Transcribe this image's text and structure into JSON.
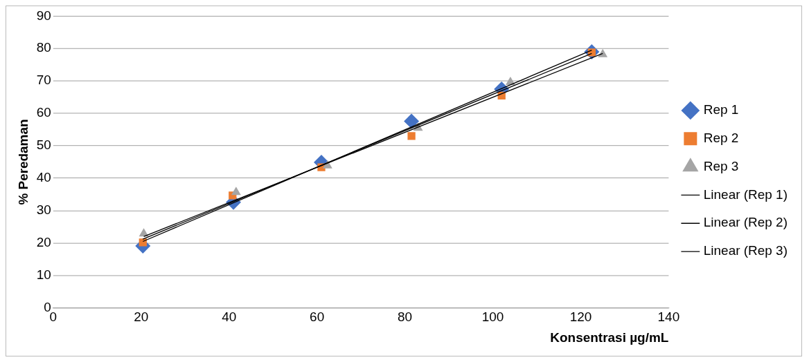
{
  "chart_data": {
    "type": "scatter",
    "xlabel": "Konsentrasi µg/mL",
    "ylabel": "% Peredaman",
    "xlim": [
      0,
      140
    ],
    "xticks": [
      0,
      20,
      40,
      60,
      80,
      100,
      120,
      140
    ],
    "ylim": [
      0,
      90
    ],
    "yticks": [
      0,
      10,
      20,
      30,
      40,
      50,
      60,
      70,
      80,
      90
    ],
    "grid": "y",
    "legend": "right",
    "series": [
      {
        "name": "Rep 1",
        "marker": "diamond",
        "color": "#4472c4",
        "x": [
          20.4,
          41,
          61,
          81.5,
          102,
          122.5
        ],
        "values": [
          19.1,
          32.6,
          44.9,
          57.6,
          67.5,
          79
        ]
      },
      {
        "name": "Rep 2",
        "marker": "square",
        "color": "#ed7d31",
        "x": [
          20.4,
          40.8,
          61,
          81.5,
          102,
          122.5
        ],
        "values": [
          20.2,
          34.7,
          43.4,
          53,
          65.5,
          78.8
        ]
      },
      {
        "name": "Rep 3",
        "marker": "triangle",
        "color": "#a5a5a5",
        "x": [
          20.6,
          41.6,
          62.4,
          83,
          104,
          125
        ],
        "values": [
          22.9,
          35.7,
          43.9,
          55.5,
          69.6,
          78.2
        ]
      },
      {
        "name": "Linear (Rep 1)",
        "type": "line",
        "marker": "none",
        "line_style": "solid",
        "color": "#000000",
        "x": [
          20.4,
          122.5
        ],
        "values": [
          20.5,
          79.5
        ]
      },
      {
        "name": "Linear (Rep 2)",
        "type": "line",
        "marker": "none",
        "line_style": "solid",
        "color": "#000000",
        "x": [
          20.4,
          122.5
        ],
        "values": [
          21.2,
          78.5
        ]
      },
      {
        "name": "Linear (Rep 3)",
        "type": "line",
        "marker": "none",
        "line_style": "solid",
        "color": "#000000",
        "x": [
          20.6,
          125
        ],
        "values": [
          22,
          78.5
        ]
      }
    ]
  }
}
